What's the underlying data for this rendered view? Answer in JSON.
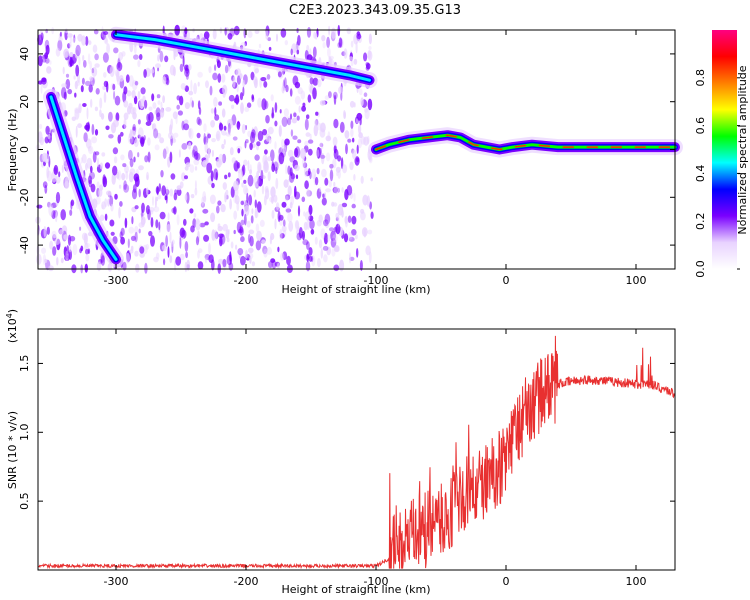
{
  "title": "C2E3.2023.343.09.35.G13",
  "chart_data": [
    {
      "type": "heatmap",
      "xlabel": "Height of straight line (km)",
      "ylabel": "Frequency (Hz)",
      "xlim": [
        -360,
        130
      ],
      "ylim": [
        -50,
        50
      ],
      "x_ticks": [
        -300,
        -200,
        -100,
        0,
        100
      ],
      "y_ticks": [
        -40,
        -20,
        0,
        20,
        40
      ],
      "colorbar": {
        "label": "Normalized spectral amplitude",
        "range": [
          0,
          1
        ],
        "ticks": [
          "0.0",
          "0.2",
          "0.4",
          "0.6",
          "0.8"
        ],
        "colors": [
          "#ffffff",
          "#e8d2ff",
          "#7a00ff",
          "#0000ff",
          "#00ffff",
          "#00ff00",
          "#ffff00",
          "#ff7f00",
          "#ff0000",
          "#ff0080"
        ]
      },
      "noise_region": {
        "x_range": [
          -360,
          -103
        ],
        "typical_amplitude": 0.15
      },
      "traces": [
        {
          "name": "",
          "x": [
            -350,
            -340,
            -330,
            -320,
            -310,
            -300
          ],
          "y": [
            22,
            5,
            -12,
            -28,
            -38,
            -46
          ],
          "amplitude": 0.35
        },
        {
          "name": "",
          "x": [
            -300,
            -270,
            -240,
            -210,
            -180,
            -150,
            -120,
            -105
          ],
          "y": [
            48,
            46,
            43,
            40,
            37,
            34,
            31,
            29
          ],
          "amplitude": 0.35
        },
        {
          "name": "",
          "x": [
            -100,
            -90,
            -75,
            -60,
            -45,
            -35,
            -25,
            -15,
            -5,
            5,
            20,
            40,
            60,
            80,
            100,
            130
          ],
          "y": [
            0,
            2,
            4,
            5,
            6,
            5,
            2,
            1,
            0,
            1,
            2,
            1,
            1,
            1,
            1,
            1
          ],
          "amplitude": 0.85
        }
      ]
    },
    {
      "type": "line",
      "xlabel": "Height of straight line (km)",
      "ylabel": "SNR (10 * v/v)",
      "y_multiplier": "(x10",
      "y_multiplier_exp": "4",
      "y_multiplier_close": ")",
      "xlim": [
        -360,
        130
      ],
      "ylim": [
        0,
        1.75
      ],
      "x_ticks": [
        -300,
        -200,
        -100,
        0,
        100
      ],
      "y_ticks": [
        "0.5",
        "1.0",
        "1.5"
      ],
      "series": [
        {
          "name": "",
          "color": "#e83030",
          "x": [
            -360,
            -300,
            -200,
            -100,
            -90,
            -80,
            -70,
            -60,
            -50,
            -40,
            -30,
            -20,
            -10,
            0,
            10,
            20,
            30,
            40,
            50,
            60,
            70,
            80,
            90,
            100,
            110,
            120,
            130
          ],
          "y": [
            0.03,
            0.03,
            0.03,
            0.03,
            0.08,
            0.2,
            0.25,
            0.3,
            0.35,
            0.45,
            0.55,
            0.6,
            0.7,
            0.8,
            1.05,
            1.2,
            1.3,
            1.35,
            1.37,
            1.38,
            1.38,
            1.37,
            1.36,
            1.35,
            1.35,
            1.32,
            1.28
          ]
        }
      ]
    }
  ]
}
